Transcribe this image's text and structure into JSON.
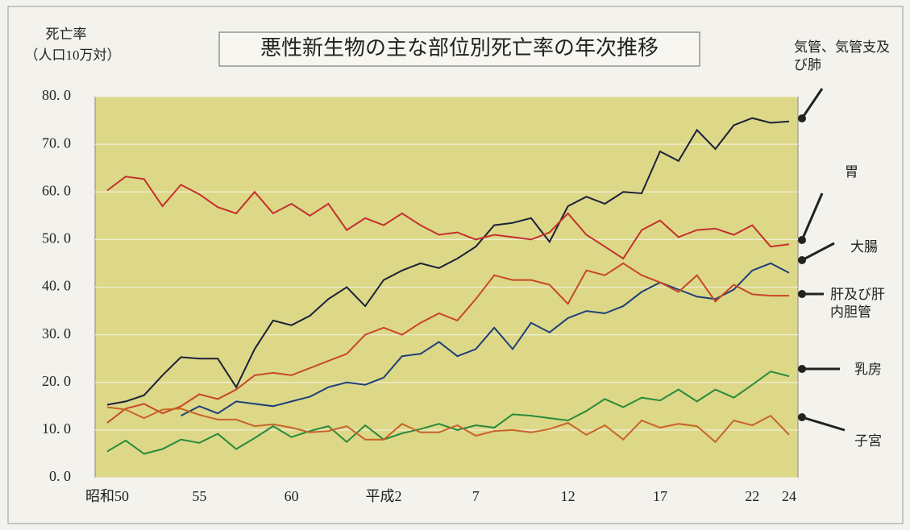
{
  "chart_data": {
    "type": "line",
    "title": "悪性新生物の主な部位別死亡率の年次推移",
    "y_label": [
      "死亡率",
      "（人口10万対）"
    ],
    "categories": [
      "昭和50",
      null,
      null,
      null,
      null,
      "55",
      null,
      null,
      null,
      null,
      "60",
      null,
      null,
      null,
      null,
      "平成2",
      null,
      null,
      null,
      null,
      "7",
      null,
      null,
      null,
      null,
      "12",
      null,
      null,
      null,
      null,
      "17",
      null,
      null,
      null,
      null,
      "22",
      null,
      "24"
    ],
    "ylim": [
      0,
      80
    ],
    "yticks": [
      {
        "value": 0,
        "label": "0. 0"
      },
      {
        "value": 10,
        "label": "10. 0"
      },
      {
        "value": 20,
        "label": "20. 0"
      },
      {
        "value": 30,
        "label": "30. 0"
      },
      {
        "value": 40,
        "label": "40. 0"
      },
      {
        "value": 50,
        "label": "50. 0"
      },
      {
        "value": 60,
        "label": "60. 0"
      },
      {
        "value": 70,
        "label": "70. 0"
      },
      {
        "value": 80,
        "label": "80. 0"
      }
    ],
    "grid": true,
    "series": [
      {
        "name": "気管、気管支及び肺",
        "color": "#1c2038",
        "values": [
          15.3,
          16,
          17.3,
          21.5,
          25.3,
          25,
          25,
          19,
          27,
          33,
          32,
          34,
          37.5,
          40,
          36,
          41.5,
          43.5,
          45,
          44,
          46,
          48.5,
          53,
          53.5,
          54.5,
          49.5,
          57,
          59,
          57.5,
          60,
          59.7,
          68.5,
          66.5,
          73,
          69,
          74,
          75.5,
          74.5,
          74.8
        ]
      },
      {
        "name": "胃",
        "color": "#c4302e",
        "values": [
          60.3,
          63.2,
          62.7,
          57,
          61.5,
          59.5,
          56.8,
          55.5,
          60,
          55.5,
          57.5,
          55,
          57.5,
          52,
          54.5,
          53,
          55.5,
          53,
          51,
          51.5,
          50,
          51,
          50.5,
          50,
          51.5,
          55.5,
          51,
          48.5,
          46,
          52,
          54,
          50.5,
          52,
          52.3,
          51,
          53,
          48.5,
          49
        ]
      },
      {
        "name": "大腸",
        "color": "#203f78",
        "values": [
          null,
          null,
          null,
          null,
          13,
          15,
          13.5,
          16,
          15.5,
          15,
          16,
          17,
          19,
          20,
          19.5,
          21,
          25.5,
          26,
          28.5,
          25.5,
          27,
          31.5,
          27,
          32.5,
          30.5,
          33.5,
          35,
          34.5,
          36,
          39,
          41,
          39.5,
          38,
          37.5,
          39.5,
          43.5,
          45,
          43
        ]
      },
      {
        "name": "肝及び肝内胆管",
        "color": "#c8462a",
        "values": [
          11.5,
          14.5,
          15.5,
          13.5,
          15,
          17.5,
          16.5,
          18.5,
          21.5,
          22,
          21.5,
          23,
          24.5,
          26,
          30,
          31.5,
          30,
          32.5,
          34.5,
          33,
          37.5,
          42.5,
          41.5,
          41.5,
          40.5,
          36.5,
          43.5,
          42.5,
          45,
          42.5,
          41,
          39,
          42.5,
          37,
          40.5,
          38.5,
          38.2,
          38.2
        ]
      },
      {
        "name": "乳房",
        "color": "#2a8a3c",
        "values": [
          5.5,
          7.8,
          5,
          6,
          8,
          7.3,
          9.2,
          6,
          8.3,
          10.8,
          8.5,
          9.8,
          10.8,
          7.5,
          11,
          8,
          9.3,
          10.2,
          11.3,
          10,
          11,
          10.5,
          13.3,
          13,
          12.5,
          12,
          14,
          16.5,
          14.8,
          16.8,
          16.2,
          18.5,
          16,
          18.5,
          16.8,
          19.5,
          22.3,
          21.3
        ]
      },
      {
        "name": "子宮",
        "color": "#c8642a",
        "values": [
          14.8,
          14.3,
          12.5,
          14.3,
          14.5,
          13.2,
          12.2,
          12.2,
          10.8,
          11.2,
          10.5,
          9.5,
          9.8,
          10.8,
          8,
          8,
          11.3,
          9.5,
          9.5,
          11,
          8.8,
          9.8,
          10,
          9.5,
          10.2,
          11.5,
          9,
          11,
          8,
          12,
          10.5,
          11.3,
          10.8,
          7.5,
          12,
          11,
          13,
          9
        ]
      }
    ]
  }
}
